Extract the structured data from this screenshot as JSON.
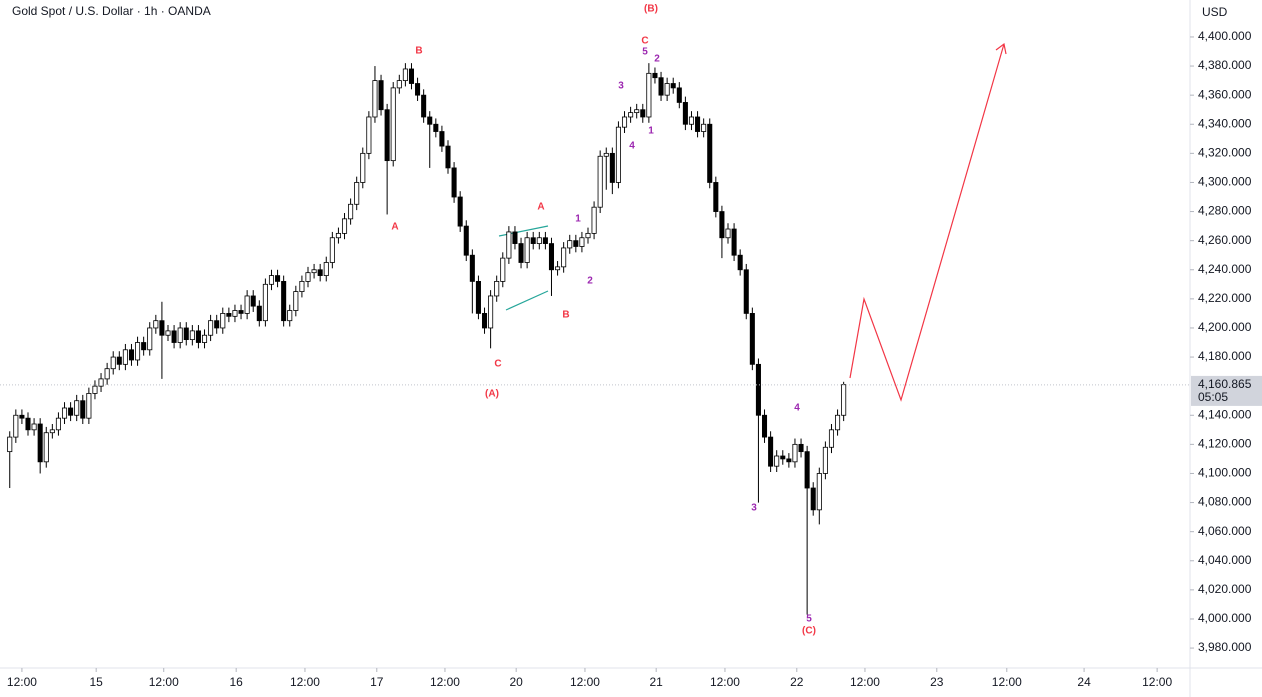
{
  "chart_data": {
    "type": "candlestick",
    "title": "Gold Spot / U.S. Dollar · 1h · OANDA",
    "currency": "USD",
    "up_color": "#ffffff",
    "down_color": "#000000",
    "edge_color": "#000000",
    "xlim": [
      -3.6,
      191.9
    ],
    "ylim": [
      3971.8,
      4425.4
    ],
    "xticks": [
      {
        "value": 0,
        "label": "12:00"
      },
      {
        "value": 12.2,
        "label": "15"
      },
      {
        "value": 23.3,
        "label": "12:00"
      },
      {
        "value": 35.2,
        "label": "16"
      },
      {
        "value": 46.5,
        "label": "12:00"
      },
      {
        "value": 58.3,
        "label": "17"
      },
      {
        "value": 69.5,
        "label": "12:00"
      },
      {
        "value": 81.2,
        "label": "20"
      },
      {
        "value": 92.5,
        "label": "12:00"
      },
      {
        "value": 104.2,
        "label": "21"
      },
      {
        "value": 115.5,
        "label": "12:00"
      },
      {
        "value": 127.3,
        "label": "22"
      },
      {
        "value": 138.5,
        "label": "12:00"
      },
      {
        "value": 150.3,
        "label": "23"
      },
      {
        "value": 161.8,
        "label": "12:00"
      },
      {
        "value": 174.5,
        "label": "24"
      },
      {
        "value": 186.5,
        "label": "12:00"
      }
    ],
    "yticks": [
      {
        "value": 3980,
        "label": "3,980.000"
      },
      {
        "value": 4000,
        "label": "4,000.000"
      },
      {
        "value": 4020,
        "label": "4,020.000"
      },
      {
        "value": 4040,
        "label": "4,040.000"
      },
      {
        "value": 4060,
        "label": "4,060.000"
      },
      {
        "value": 4080,
        "label": "4,080.000"
      },
      {
        "value": 4100,
        "label": "4,100.000"
      },
      {
        "value": 4120,
        "label": "4,120.000"
      },
      {
        "value": 4140,
        "label": "4,140.000"
      },
      {
        "value": 4180,
        "label": "4,180.000"
      },
      {
        "value": 4200,
        "label": "4,200.000"
      },
      {
        "value": 4220,
        "label": "4,220.000"
      },
      {
        "value": 4240,
        "label": "4,240.000"
      },
      {
        "value": 4260,
        "label": "4,260.000"
      },
      {
        "value": 4280,
        "label": "4,280.000"
      },
      {
        "value": 4300,
        "label": "4,300.000"
      },
      {
        "value": 4320,
        "label": "4,320.000"
      },
      {
        "value": 4340,
        "label": "4,340.000"
      },
      {
        "value": 4360,
        "label": "4,360.000"
      },
      {
        "value": 4380,
        "label": "4,380.000"
      },
      {
        "value": 4400,
        "label": "4,400.000"
      }
    ],
    "last_price": {
      "value": 4160.865,
      "label": "4,160.865"
    },
    "countdown": "05:05",
    "x": [
      -2,
      -1,
      0,
      1,
      2,
      3,
      4,
      5,
      6,
      7,
      8,
      9,
      10,
      11,
      12,
      13,
      14,
      15,
      16,
      17,
      18,
      19,
      20,
      21,
      22,
      23,
      24,
      25,
      26,
      27,
      28,
      29,
      30,
      31,
      32,
      33,
      34,
      35,
      36,
      37,
      38,
      39,
      40,
      41,
      42,
      43,
      44,
      45,
      46,
      47,
      48,
      49,
      50,
      51,
      52,
      53,
      54,
      55,
      56,
      57,
      58,
      59,
      60,
      61,
      62,
      63,
      64,
      65,
      66,
      67,
      68,
      69,
      70,
      71,
      72,
      73,
      74,
      75,
      76,
      77,
      78,
      79,
      80,
      81,
      82,
      83,
      84,
      85,
      86,
      87,
      88,
      89,
      90,
      91,
      92,
      93,
      94,
      95,
      96,
      97,
      98,
      99,
      100,
      101,
      102,
      103,
      104,
      105,
      106,
      107,
      108,
      109,
      110,
      111,
      112,
      113,
      114,
      115,
      116,
      117,
      118,
      119,
      120,
      121,
      122,
      123,
      124,
      125,
      126,
      127,
      128,
      129,
      130,
      131,
      132,
      133,
      134,
      135
    ],
    "open": [
      4115,
      4125,
      4140,
      4138,
      4130,
      4134,
      4108,
      4128,
      4130,
      4138,
      4145,
      4140,
      4150,
      4138,
      4155,
      4160,
      4165,
      4172,
      4180,
      4175,
      4185,
      4178,
      4190,
      4185,
      4200,
      4205,
      4195,
      4198,
      4190,
      4200,
      4192,
      4198,
      4190,
      4195,
      4205,
      4200,
      4210,
      4208,
      4212,
      4210,
      4222,
      4215,
      4205,
      4230,
      4236,
      4232,
      4205,
      4212,
      4225,
      4232,
      4238,
      4240,
      4236,
      4245,
      4262,
      4265,
      4275,
      4285,
      4300,
      4320,
      4345,
      4370,
      4350,
      4315,
      4365,
      4370,
      4378,
      4368,
      4360,
      4345,
      4340,
      4335,
      4325,
      4310,
      4290,
      4270,
      4250,
      4232,
      4210,
      4200,
      4222,
      4232,
      4248,
      4266,
      4258,
      4245,
      4262,
      4258,
      4262,
      4258,
      4240,
      4242,
      4255,
      4260,
      4256,
      4262,
      4265,
      4283,
      4318,
      4320,
      4300,
      4338,
      4345,
      4348,
      4350,
      4345,
      4375,
      4372,
      4360,
      4368,
      4365,
      4355,
      4340,
      4345,
      4335,
      4340,
      4300,
      4280,
      4262,
      4268,
      4250,
      4240,
      4210,
      4175,
      4140,
      4125,
      4105,
      4112,
      4110,
      4108,
      4120,
      4115,
      4090,
      4075,
      4100,
      4118,
      4130,
      4140
    ],
    "high": [
      4129,
      4144,
      4144,
      4142,
      4138,
      4138,
      4132,
      4134,
      4142,
      4149,
      4149,
      4154,
      4154,
      4159,
      4164,
      4169,
      4176,
      4184,
      4184,
      4189,
      4189,
      4194,
      4194,
      4204,
      4209,
      4218,
      4202,
      4202,
      4204,
      4204,
      4202,
      4202,
      4199,
      4209,
      4209,
      4214,
      4214,
      4216,
      4216,
      4226,
      4226,
      4219,
      4234,
      4240,
      4240,
      4236,
      4216,
      4229,
      4236,
      4242,
      4244,
      4244,
      4249,
      4266,
      4269,
      4279,
      4289,
      4304,
      4324,
      4349,
      4380,
      4374,
      4354,
      4369,
      4374,
      4382,
      4382,
      4372,
      4364,
      4349,
      4344,
      4339,
      4329,
      4314,
      4294,
      4274,
      4254,
      4236,
      4214,
      4226,
      4236,
      4252,
      4270,
      4270,
      4262,
      4266,
      4266,
      4266,
      4266,
      4262,
      4246,
      4259,
      4264,
      4264,
      4266,
      4269,
      4287,
      4322,
      4324,
      4324,
      4342,
      4349,
      4352,
      4354,
      4354,
      4382,
      4379,
      4376,
      4372,
      4372,
      4369,
      4359,
      4349,
      4349,
      4344,
      4344,
      4304,
      4284,
      4272,
      4272,
      4254,
      4244,
      4214,
      4179,
      4144,
      4129,
      4116,
      4116,
      4114,
      4124,
      4124,
      4119,
      4094,
      4104,
      4122,
      4134,
      4144,
      4163
    ],
    "low": [
      4090,
      4121,
      4134,
      4126,
      4126,
      4100,
      4104,
      4124,
      4126,
      4134,
      4136,
      4136,
      4134,
      4134,
      4151,
      4156,
      4161,
      4168,
      4171,
      4171,
      4174,
      4174,
      4181,
      4181,
      4196,
      4165,
      4191,
      4186,
      4186,
      4188,
      4188,
      4186,
      4186,
      4191,
      4196,
      4196,
      4204,
      4204,
      4206,
      4206,
      4211,
      4201,
      4201,
      4226,
      4228,
      4201,
      4201,
      4208,
      4221,
      4228,
      4234,
      4232,
      4232,
      4241,
      4258,
      4261,
      4271,
      4281,
      4296,
      4316,
      4341,
      4346,
      4278,
      4311,
      4361,
      4366,
      4364,
      4356,
      4341,
      4310,
      4331,
      4321,
      4306,
      4286,
      4266,
      4246,
      4210,
      4206,
      4196,
      4186,
      4218,
      4228,
      4244,
      4254,
      4241,
      4241,
      4254,
      4254,
      4254,
      4222,
      4236,
      4238,
      4251,
      4252,
      4252,
      4258,
      4261,
      4279,
      4295,
      4292,
      4296,
      4334,
      4341,
      4344,
      4341,
      4341,
      4368,
      4356,
      4356,
      4361,
      4351,
      4336,
      4336,
      4331,
      4331,
      4296,
      4276,
      4248,
      4258,
      4246,
      4236,
      4206,
      4171,
      4080,
      4121,
      4101,
      4101,
      4106,
      4104,
      4104,
      4111,
      4003,
      4071,
      4065,
      4096,
      4114,
      4126,
      4136
    ],
    "close": [
      4125,
      4140,
      4138,
      4130,
      4134,
      4108,
      4128,
      4130,
      4138,
      4145,
      4140,
      4150,
      4138,
      4155,
      4160,
      4165,
      4172,
      4180,
      4175,
      4185,
      4178,
      4190,
      4185,
      4200,
      4205,
      4195,
      4198,
      4190,
      4200,
      4192,
      4198,
      4190,
      4195,
      4205,
      4200,
      4210,
      4208,
      4212,
      4210,
      4222,
      4215,
      4205,
      4230,
      4236,
      4232,
      4205,
      4212,
      4225,
      4232,
      4238,
      4240,
      4236,
      4245,
      4262,
      4265,
      4275,
      4285,
      4300,
      4320,
      4345,
      4370,
      4350,
      4315,
      4365,
      4370,
      4378,
      4368,
      4360,
      4345,
      4340,
      4335,
      4325,
      4310,
      4290,
      4270,
      4250,
      4232,
      4210,
      4200,
      4222,
      4232,
      4248,
      4266,
      4258,
      4245,
      4262,
      4258,
      4262,
      4258,
      4240,
      4242,
      4255,
      4260,
      4256,
      4262,
      4265,
      4283,
      4318,
      4320,
      4300,
      4338,
      4345,
      4348,
      4350,
      4345,
      4375,
      4372,
      4360,
      4368,
      4365,
      4355,
      4340,
      4345,
      4335,
      4340,
      4300,
      4280,
      4262,
      4268,
      4250,
      4240,
      4210,
      4175,
      4140,
      4125,
      4105,
      4112,
      4110,
      4108,
      4120,
      4115,
      4090,
      4075,
      4100,
      4118,
      4130,
      4140,
      4161
    ],
    "annotations": [
      "B",
      "A",
      "C",
      "(A)",
      "A",
      "B",
      "1",
      "2",
      "3",
      "4",
      "C",
      "5",
      "2",
      "1",
      "(B)",
      "4",
      "3",
      "5",
      "(C)"
    ]
  }
}
